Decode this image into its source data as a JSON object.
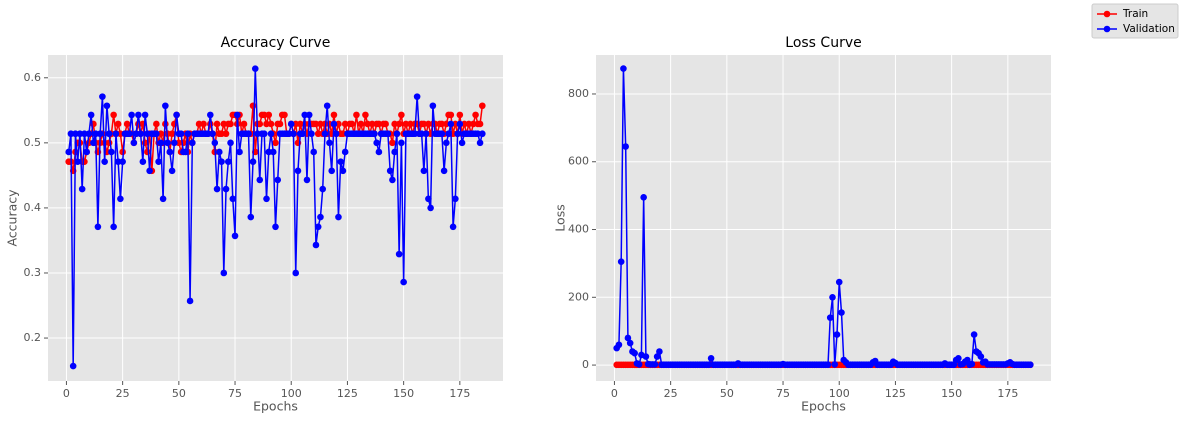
{
  "chart_data": [
    {
      "type": "line",
      "title": "Accuracy Curve",
      "x_label": "Epochs",
      "y_label": "Accuracy",
      "xlim": [
        -8.2,
        194.2
      ],
      "ylim": [
        0.134,
        0.635
      ],
      "xticks": [
        0,
        25,
        50,
        75,
        100,
        125,
        150,
        175
      ],
      "yticks": [
        0.2,
        0.3,
        0.4,
        0.5,
        0.6
      ],
      "grid": true,
      "legend": "upper right",
      "x": [
        1,
        2,
        3,
        4,
        5,
        6,
        7,
        8,
        9,
        10,
        11,
        12,
        13,
        14,
        15,
        16,
        17,
        18,
        19,
        20,
        21,
        22,
        23,
        24,
        25,
        26,
        27,
        28,
        29,
        30,
        31,
        32,
        33,
        34,
        35,
        36,
        37,
        38,
        39,
        40,
        41,
        42,
        43,
        44,
        45,
        46,
        47,
        48,
        49,
        50,
        51,
        52,
        53,
        54,
        55,
        56,
        57,
        58,
        59,
        60,
        61,
        62,
        63,
        64,
        65,
        66,
        67,
        68,
        69,
        70,
        71,
        72,
        73,
        74,
        75,
        76,
        77,
        78,
        79,
        80,
        81,
        82,
        83,
        84,
        85,
        86,
        87,
        88,
        89,
        90,
        91,
        92,
        93,
        94,
        95,
        96,
        97,
        98,
        99,
        100,
        101,
        102,
        103,
        104,
        105,
        106,
        107,
        108,
        109,
        110,
        111,
        112,
        113,
        114,
        115,
        116,
        117,
        118,
        119,
        120,
        121,
        122,
        123,
        124,
        125,
        126,
        127,
        128,
        129,
        130,
        131,
        132,
        133,
        134,
        135,
        136,
        137,
        138,
        139,
        140,
        141,
        142,
        143,
        144,
        145,
        146,
        147,
        148,
        149,
        150,
        151,
        152,
        153,
        154,
        155,
        156,
        157,
        158,
        159,
        160,
        161,
        162,
        163,
        164,
        165,
        166,
        167,
        168,
        169,
        170,
        171,
        172,
        173,
        174,
        175,
        176,
        177,
        178,
        179,
        180,
        181,
        182,
        183,
        184,
        185
      ],
      "series": [
        {
          "name": "Train",
          "color": "#ff0000",
          "values": [
            0.471,
            0.471,
            0.457,
            0.486,
            0.5,
            0.5,
            0.471,
            0.471,
            0.486,
            0.5,
            0.514,
            0.529,
            0.5,
            0.486,
            0.5,
            0.514,
            0.5,
            0.486,
            0.5,
            0.514,
            0.543,
            0.514,
            0.529,
            0.514,
            0.486,
            0.514,
            0.529,
            0.514,
            0.514,
            0.5,
            0.514,
            0.529,
            0.514,
            0.529,
            0.5,
            0.486,
            0.514,
            0.457,
            0.514,
            0.529,
            0.5,
            0.514,
            0.5,
            0.529,
            0.514,
            0.486,
            0.514,
            0.529,
            0.543,
            0.5,
            0.486,
            0.5,
            0.514,
            0.486,
            0.514,
            0.5,
            0.514,
            0.514,
            0.529,
            0.514,
            0.529,
            0.514,
            0.514,
            0.529,
            0.514,
            0.486,
            0.529,
            0.514,
            0.514,
            0.529,
            0.514,
            0.529,
            0.529,
            0.543,
            0.543,
            0.529,
            0.543,
            0.514,
            0.529,
            0.514,
            0.514,
            0.514,
            0.557,
            0.486,
            0.529,
            0.529,
            0.543,
            0.543,
            0.529,
            0.543,
            0.529,
            0.514,
            0.5,
            0.529,
            0.529,
            0.543,
            0.543,
            0.514,
            0.514,
            0.529,
            0.514,
            0.529,
            0.5,
            0.529,
            0.514,
            0.529,
            0.514,
            0.529,
            0.529,
            0.529,
            0.529,
            0.514,
            0.529,
            0.514,
            0.529,
            0.514,
            0.529,
            0.514,
            0.543,
            0.514,
            0.529,
            0.514,
            0.514,
            0.529,
            0.514,
            0.529,
            0.529,
            0.514,
            0.543,
            0.514,
            0.529,
            0.514,
            0.543,
            0.529,
            0.514,
            0.529,
            0.514,
            0.529,
            0.529,
            0.514,
            0.529,
            0.529,
            0.514,
            0.514,
            0.5,
            0.529,
            0.514,
            0.529,
            0.543,
            0.514,
            0.529,
            0.514,
            0.529,
            0.514,
            0.529,
            0.529,
            0.514,
            0.529,
            0.529,
            0.514,
            0.529,
            0.514,
            0.529,
            0.529,
            0.514,
            0.529,
            0.529,
            0.514,
            0.529,
            0.543,
            0.543,
            0.514,
            0.529,
            0.514,
            0.543,
            0.514,
            0.529,
            0.514,
            0.529,
            0.514,
            0.529,
            0.543,
            0.529,
            0.529,
            0.557
          ]
        },
        {
          "name": "Validation",
          "color": "#0000ff",
          "values": [
            0.486,
            0.514,
            0.157,
            0.514,
            0.471,
            0.514,
            0.429,
            0.514,
            0.486,
            0.514,
            0.543,
            0.5,
            0.514,
            0.371,
            0.514,
            0.571,
            0.471,
            0.557,
            0.514,
            0.486,
            0.371,
            0.514,
            0.471,
            0.414,
            0.471,
            0.514,
            0.514,
            0.514,
            0.543,
            0.5,
            0.514,
            0.543,
            0.514,
            0.471,
            0.543,
            0.514,
            0.457,
            0.514,
            0.514,
            0.514,
            0.471,
            0.5,
            0.414,
            0.557,
            0.5,
            0.486,
            0.457,
            0.5,
            0.543,
            0.514,
            0.514,
            0.486,
            0.486,
            0.514,
            0.257,
            0.5,
            0.514,
            0.514,
            0.514,
            0.514,
            0.514,
            0.514,
            0.514,
            0.543,
            0.514,
            0.5,
            0.429,
            0.486,
            0.471,
            0.3,
            0.429,
            0.471,
            0.5,
            0.414,
            0.357,
            0.543,
            0.486,
            0.514,
            0.514,
            0.514,
            0.514,
            0.386,
            0.471,
            0.614,
            0.514,
            0.443,
            0.514,
            0.514,
            0.414,
            0.486,
            0.514,
            0.486,
            0.371,
            0.443,
            0.514,
            0.514,
            0.514,
            0.514,
            0.514,
            0.529,
            0.514,
            0.3,
            0.457,
            0.514,
            0.514,
            0.543,
            0.443,
            0.543,
            0.514,
            0.486,
            0.343,
            0.371,
            0.386,
            0.429,
            0.514,
            0.557,
            0.5,
            0.457,
            0.529,
            0.514,
            0.386,
            0.471,
            0.457,
            0.486,
            0.514,
            0.514,
            0.514,
            0.514,
            0.514,
            0.514,
            0.514,
            0.514,
            0.514,
            0.514,
            0.514,
            0.514,
            0.514,
            0.5,
            0.486,
            0.514,
            0.514,
            0.514,
            0.514,
            0.457,
            0.443,
            0.486,
            0.514,
            0.329,
            0.5,
            0.286,
            0.514,
            0.514,
            0.514,
            0.514,
            0.514,
            0.571,
            0.514,
            0.514,
            0.457,
            0.514,
            0.414,
            0.4,
            0.557,
            0.514,
            0.514,
            0.514,
            0.514,
            0.457,
            0.5,
            0.514,
            0.529,
            0.371,
            0.414,
            0.514,
            0.529,
            0.5,
            0.514,
            0.514,
            0.514,
            0.514,
            0.514,
            0.514,
            0.514,
            0.5,
            0.514
          ]
        }
      ]
    },
    {
      "type": "line",
      "title": "Loss Curve",
      "x_label": "Epochs",
      "y_label": "Loss",
      "xlim": [
        -8.2,
        194.2
      ],
      "ylim": [
        -47,
        915
      ],
      "xticks": [
        0,
        25,
        50,
        75,
        100,
        125,
        150,
        175
      ],
      "yticks": [
        0,
        200,
        400,
        600,
        800
      ],
      "grid": true,
      "x": [
        1,
        2,
        3,
        4,
        5,
        6,
        7,
        8,
        9,
        10,
        11,
        12,
        13,
        14,
        15,
        16,
        17,
        18,
        19,
        20,
        21,
        22,
        23,
        24,
        25,
        26,
        27,
        28,
        29,
        30,
        31,
        32,
        33,
        34,
        35,
        36,
        37,
        38,
        39,
        40,
        41,
        42,
        43,
        44,
        45,
        46,
        47,
        48,
        49,
        50,
        51,
        52,
        53,
        54,
        55,
        56,
        57,
        58,
        59,
        60,
        61,
        62,
        63,
        64,
        65,
        66,
        67,
        68,
        69,
        70,
        71,
        72,
        73,
        74,
        75,
        76,
        77,
        78,
        79,
        80,
        81,
        82,
        83,
        84,
        85,
        86,
        87,
        88,
        89,
        90,
        91,
        92,
        93,
        94,
        95,
        96,
        97,
        98,
        99,
        100,
        101,
        102,
        103,
        104,
        105,
        106,
        107,
        108,
        109,
        110,
        111,
        112,
        113,
        114,
        115,
        116,
        117,
        118,
        119,
        120,
        121,
        122,
        123,
        124,
        125,
        126,
        127,
        128,
        129,
        130,
        131,
        132,
        133,
        134,
        135,
        136,
        137,
        138,
        139,
        140,
        141,
        142,
        143,
        144,
        145,
        146,
        147,
        148,
        149,
        150,
        151,
        152,
        153,
        154,
        155,
        156,
        157,
        158,
        159,
        160,
        161,
        162,
        163,
        164,
        165,
        166,
        167,
        168,
        169,
        170,
        171,
        172,
        173,
        174,
        175,
        176,
        177,
        178,
        179,
        180,
        181,
        182,
        183,
        184,
        185
      ],
      "series": [
        {
          "name": "Train",
          "color": "#ff0000",
          "values": [
            0.7,
            0.69,
            0.69,
            0.7,
            0.69,
            0.69,
            0.69,
            0.7,
            0.69,
            0.69,
            0.69,
            0.69,
            0.7,
            0.69,
            0.69,
            0.69,
            0.69,
            0.69,
            0.69,
            0.69,
            0.69,
            0.69,
            0.69,
            0.69,
            0.69,
            0.69,
            0.69,
            0.69,
            0.69,
            0.69,
            0.69,
            0.69,
            0.69,
            0.69,
            0.69,
            0.69,
            0.69,
            0.69,
            0.69,
            0.69,
            0.69,
            0.69,
            0.69,
            0.69,
            0.69,
            0.69,
            0.69,
            0.69,
            0.69,
            0.69,
            0.69,
            0.69,
            0.69,
            0.69,
            0.69,
            0.69,
            0.69,
            0.69,
            0.69,
            0.69,
            0.69,
            0.69,
            0.69,
            0.69,
            0.69,
            0.69,
            0.69,
            0.69,
            0.69,
            0.69,
            0.69,
            0.69,
            0.69,
            0.69,
            0.69,
            0.69,
            0.69,
            0.69,
            0.69,
            0.69,
            0.69,
            0.69,
            0.69,
            0.69,
            0.69,
            0.69,
            0.69,
            0.69,
            0.69,
            0.69,
            0.69,
            0.69,
            0.69,
            0.69,
            0.69,
            0.69,
            0.69,
            0.69,
            0.69,
            0.69,
            0.69,
            0.69,
            0.69,
            0.69,
            0.69,
            0.69,
            0.69,
            0.69,
            0.69,
            0.69,
            0.69,
            0.69,
            0.69,
            0.69,
            0.69,
            0.69,
            0.69,
            0.69,
            0.69,
            0.69,
            0.69,
            0.69,
            0.69,
            0.69,
            0.69,
            0.69,
            0.69,
            0.69,
            0.69,
            0.69,
            0.69,
            0.69,
            0.69,
            0.69,
            0.69,
            0.69,
            0.69,
            0.69,
            0.69,
            0.69,
            0.69,
            0.69,
            0.69,
            0.69,
            0.69,
            0.69,
            0.69,
            0.69,
            0.69,
            0.69,
            0.69,
            0.69,
            0.69,
            0.69,
            0.69,
            0.69,
            0.69,
            0.69,
            0.69,
            0.69,
            0.69,
            0.69,
            0.69,
            0.69,
            0.69,
            0.69,
            0.69,
            0.69,
            0.69,
            0.69,
            0.69,
            0.69,
            0.69,
            0.69,
            0.69,
            0.69,
            0.69,
            0.69,
            0.69,
            0.69,
            0.69,
            0.69,
            0.69,
            0.69,
            0.69
          ]
        },
        {
          "name": "Validation",
          "color": "#0000ff",
          "values": [
            50,
            60,
            305,
            875,
            645,
            80,
            65,
            40,
            35,
            5,
            2,
            30,
            495,
            25,
            3,
            2,
            2,
            2,
            25,
            40,
            1,
            1,
            1,
            1,
            1,
            1,
            1,
            1,
            1,
            1,
            1,
            1,
            1,
            1,
            1,
            1,
            1,
            1,
            1,
            1,
            1,
            1,
            20,
            1,
            1,
            1,
            1,
            1,
            1,
            1,
            1,
            1,
            1,
            1,
            5,
            1,
            1,
            1,
            1,
            1,
            1,
            1,
            1,
            1,
            1,
            1,
            1,
            1,
            1,
            1,
            1,
            1,
            1,
            1,
            3,
            1,
            1,
            1,
            1,
            1,
            1,
            1,
            1,
            1,
            1,
            1,
            1,
            1,
            1,
            1,
            1,
            1,
            1,
            1,
            1,
            140,
            200,
            2,
            90,
            245,
            155,
            15,
            8,
            1,
            1,
            1,
            1,
            1,
            1,
            1,
            1,
            1,
            1,
            1,
            8,
            12,
            1,
            1,
            1,
            1,
            1,
            1,
            1,
            10,
            6,
            1,
            1,
            1,
            1,
            1,
            1,
            1,
            1,
            1,
            1,
            1,
            1,
            1,
            1,
            1,
            1,
            1,
            1,
            1,
            1,
            1,
            5,
            1,
            1,
            1,
            1,
            15,
            20,
            2,
            3,
            10,
            15,
            1,
            3,
            90,
            40,
            35,
            25,
            8,
            10,
            2,
            2,
            2,
            2,
            2,
            2,
            2,
            2,
            2,
            5,
            8,
            3,
            1,
            1,
            1,
            1,
            1,
            1,
            1,
            1
          ]
        }
      ]
    }
  ]
}
